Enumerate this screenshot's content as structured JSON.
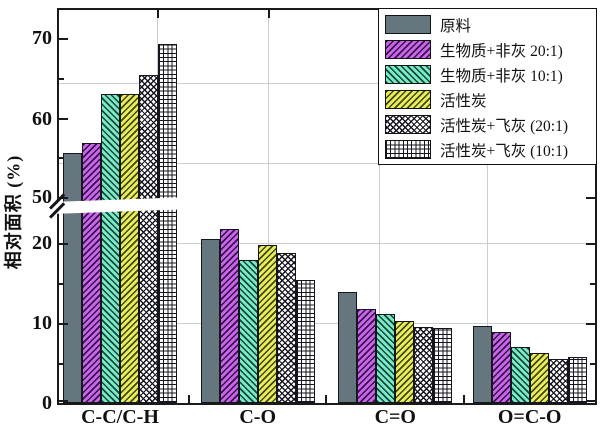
{
  "figure": {
    "ylabel": "相对面积 (%)",
    "x_tick_labels": [
      "C-C/C-H",
      "C-O",
      "C=O",
      "O=C-O"
    ],
    "y_tick_labels": [
      "0",
      "10",
      "20",
      "50",
      "60",
      "70"
    ]
  },
  "legend": {
    "items": [
      {
        "label": "原料",
        "pattern": "solid"
      },
      {
        "label": "生物质+非灰 20:1)",
        "pattern": "diag-up-magenta"
      },
      {
        "label": "生物质+非灰 10:1)",
        "pattern": "diag-down-cyan"
      },
      {
        "label": "活性炭",
        "pattern": "diag-up-yellow"
      },
      {
        "label": "活性炭+飞灰 (20:1)",
        "pattern": "cross-diag"
      },
      {
        "label": "活性炭+飞灰 (10:1)",
        "pattern": "grid"
      }
    ]
  },
  "colors": {
    "bar_gray": "#66767f",
    "bar_magenta": "#c865e8",
    "bar_cyan": "#79e9c6",
    "bar_yellow": "#e7ee5e",
    "hatch_dark": "#15151f",
    "gridline": "#c9ced3",
    "axis": "#1a1a1a"
  },
  "chart_data": {
    "type": "bar",
    "title": "",
    "xlabel": "",
    "ylabel": "相对面积 (%)",
    "categories": [
      "C-C/C-H",
      "C-O",
      "C=O",
      "O=C-O"
    ],
    "series": [
      {
        "name": "原料",
        "pattern": "solid",
        "values": [
          55.5,
          20.5,
          13.9,
          9.6
        ]
      },
      {
        "name": "生物质+非灰 20:1)",
        "pattern": "diag-up-magenta",
        "values": [
          56.8,
          21.7,
          11.7,
          8.9
        ]
      },
      {
        "name": "生物质+非灰 10:1)",
        "pattern": "diag-down-cyan",
        "values": [
          63.0,
          17.9,
          11.1,
          7.0
        ]
      },
      {
        "name": "活性炭",
        "pattern": "diag-up-yellow",
        "values": [
          63.0,
          19.8,
          10.2,
          6.3
        ]
      },
      {
        "name": "活性炭+飞灰 (20:1)",
        "pattern": "cross-diag",
        "values": [
          65.4,
          18.8,
          9.5,
          5.5
        ]
      },
      {
        "name": "活性炭+飞灰 (10:1)",
        "pattern": "grid",
        "values": [
          69.2,
          15.4,
          9.4,
          5.7
        ]
      }
    ],
    "y_axis": {
      "broken": true,
      "lower_range": [
        0,
        24
      ],
      "upper_range": [
        50,
        73
      ],
      "major_ticks": [
        0,
        10,
        20,
        50,
        60,
        70
      ],
      "minor_ticks": [
        5,
        15,
        55,
        65
      ]
    },
    "grid": true,
    "legend_position": "top-right"
  }
}
